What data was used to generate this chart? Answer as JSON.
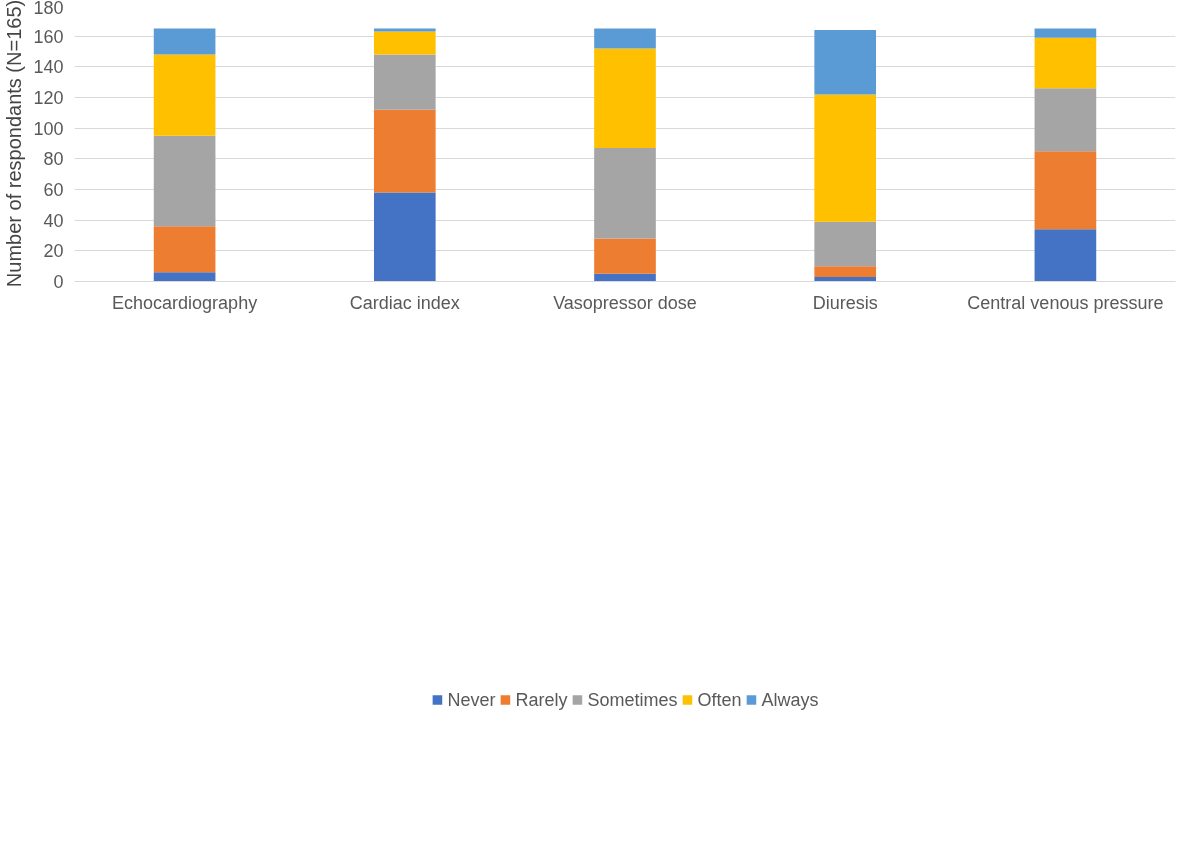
{
  "chart_data": {
    "type": "bar",
    "stacked": true,
    "ylabel": "Number of respondants (N=165)",
    "categories": [
      "Echocardiography",
      "Cardiac index",
      "Vasopressor dose",
      "Diuresis",
      "Central venous pressure"
    ],
    "series": [
      {
        "name": "Never",
        "color": "#4472c4",
        "values": [
          6,
          58,
          5,
          3,
          34
        ]
      },
      {
        "name": "Rarely",
        "color": "#ed7d31",
        "values": [
          30,
          54,
          23,
          7,
          51
        ]
      },
      {
        "name": "Sometimes",
        "color": "#a5a5a5",
        "values": [
          59,
          36,
          59,
          29,
          41
        ]
      },
      {
        "name": "Often",
        "color": "#ffc000",
        "values": [
          53,
          15,
          65,
          83,
          33
        ]
      },
      {
        "name": "Always",
        "color": "#5b9bd5",
        "values": [
          17,
          2,
          13,
          42,
          6
        ]
      }
    ],
    "ylim": [
      0,
      180
    ],
    "yticks": [
      0,
      20,
      40,
      60,
      80,
      100,
      120,
      140,
      160,
      180
    ],
    "grid": "y",
    "legend": "bottom"
  }
}
